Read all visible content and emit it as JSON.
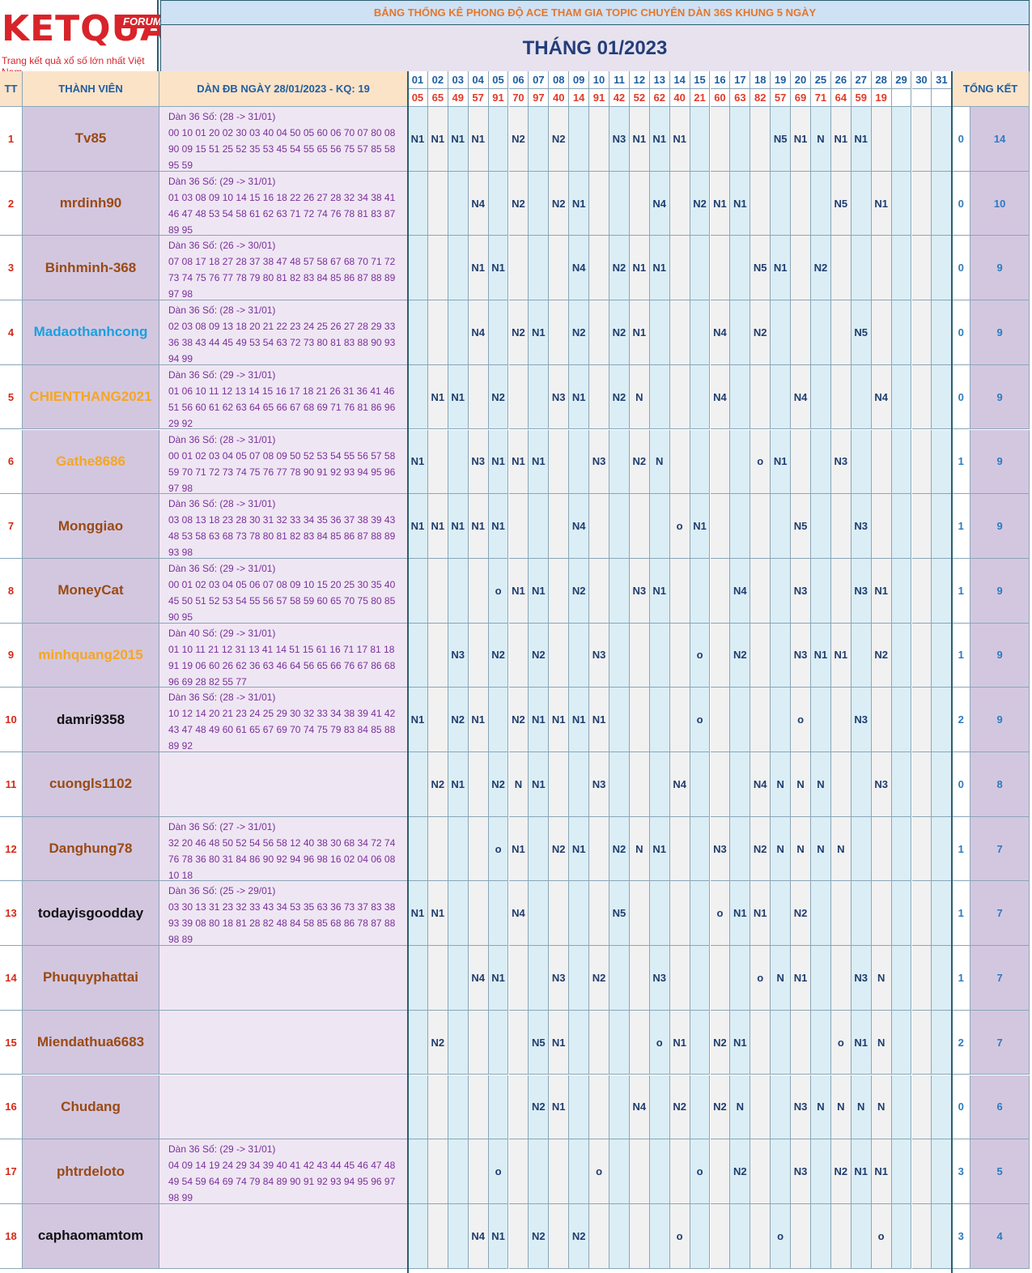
{
  "logo": {
    "brand": "KETQUA2",
    "badge": "FORUM",
    "tagline": "Trang kết quả xổ số lớn nhất Việt Nam"
  },
  "title": "BẢNG THỐNG KÊ PHONG ĐỘ ACE THAM GIA TOPIC CHUYÊN DÀN 36S KHUNG 5 NGÀY",
  "month": "THÁNG 01/2023",
  "headers": {
    "tt": "TT",
    "member": "THÀNH VIÊN",
    "dan": "DÀN ĐB NGÀY 28/01/2023 - KQ: 19",
    "summary": "TỔNG KẾT"
  },
  "days": [
    "01",
    "02",
    "03",
    "04",
    "05",
    "06",
    "07",
    "08",
    "09",
    "10",
    "11",
    "12",
    "13",
    "14",
    "15",
    "16",
    "17",
    "18",
    "19",
    "20",
    "25",
    "26",
    "27",
    "28",
    "29",
    "30",
    "31"
  ],
  "results": [
    "05",
    "65",
    "49",
    "57",
    "91",
    "70",
    "97",
    "40",
    "14",
    "91",
    "42",
    "52",
    "62",
    "40",
    "21",
    "60",
    "63",
    "82",
    "57",
    "69",
    "71",
    "64",
    "59",
    "19",
    "",
    "",
    ""
  ],
  "colors": {
    "brown": "#9a4a14",
    "cyan": "#1aa0e0",
    "orange": "#f5a623",
    "black": "#111111",
    "tt_red": "#d42a1a",
    "dan_purple": "#7a2f9a",
    "cell_navy": "#1f3d6e",
    "summary_blue": "#2c7bc0"
  },
  "rows": [
    {
      "tt": "1",
      "name": "Tv85",
      "color": "brown",
      "dan": [
        "Dàn 36 Số: (28 -> 31/01)",
        "00 10 01 20 02 30 03 40 04 50 05 60 06 70 07 80 08",
        "90 09 15 51 25 52 35 53 45 54 55 65 56 75 57 85 58",
        "95 59"
      ],
      "cells": [
        "N1",
        "N1",
        "N1",
        "N1",
        "",
        "N2",
        "",
        "N2",
        "",
        "",
        "N3",
        "N1",
        "N1",
        "N1",
        "",
        "",
        "",
        "",
        "N5",
        "N1",
        "N",
        "N1",
        "N1",
        "",
        "",
        "",
        ""
      ],
      "s1": "0",
      "s2": "14"
    },
    {
      "tt": "2",
      "name": "mrdinh90",
      "color": "brown",
      "dan": [
        "Dàn 36 Số: (29 -> 31/01)",
        "01 03 08 09 10 14 15 16 18 22 26 27 28 32 34 38 41",
        "46 47 48 53 54 58 61 62 63 71 72 74 76 78 81 83 87",
        "89 95"
      ],
      "cells": [
        "",
        "",
        "",
        "N4",
        "",
        "N2",
        "",
        "N2",
        "N1",
        "",
        "",
        "",
        "N4",
        "",
        "N2",
        "N1",
        "N1",
        "",
        "",
        "",
        "",
        "N5",
        "",
        "N1",
        "",
        "",
        ""
      ],
      "s1": "0",
      "s2": "10"
    },
    {
      "tt": "3",
      "name": "Binhminh-368",
      "color": "brown",
      "dan": [
        "Dàn 36 Số: (26 -> 30/01)",
        "07 08 17 18 27 28 37 38 47 48 57 58 67 68 70 71 72",
        "73 74 75 76 77 78 79 80 81 82 83 84 85 86 87 88 89",
        "97 98"
      ],
      "cells": [
        "",
        "",
        "",
        "N1",
        "N1",
        "",
        "",
        "",
        "N4",
        "",
        "N2",
        "N1",
        "N1",
        "",
        "",
        "",
        "",
        "N5",
        "N1",
        "",
        "N2",
        "",
        "",
        "",
        "",
        "",
        ""
      ],
      "s1": "0",
      "s2": "9"
    },
    {
      "tt": "4",
      "name": "Madaothanhcong",
      "color": "cyan",
      "dan": [
        "Dàn 36 Số: (28 -> 31/01)",
        "02 03 08 09 13 18 20 21 22 23 24 25 26 27 28 29 33",
        "36 38 43 44 45 49 53 54 63 72 73 80 81 83 88 90 93",
        "94 99"
      ],
      "cells": [
        "",
        "",
        "",
        "N4",
        "",
        "N2",
        "N1",
        "",
        "N2",
        "",
        "N2",
        "N1",
        "",
        "",
        "",
        "N4",
        "",
        "N2",
        "",
        "",
        "",
        "",
        "N5",
        "",
        "",
        "",
        ""
      ],
      "s1": "0",
      "s2": "9"
    },
    {
      "tt": "5",
      "name": "CHIENTHANG2021",
      "color": "orange",
      "dan": [
        "Dàn 36 Số: (29 -> 31/01)",
        "01 06 10 11 12 13 14 15 16 17 18 21 26 31 36 41 46",
        "51 56 60 61 62 63 64 65 66 67 68 69 71 76 81 86 96",
        "29 92"
      ],
      "cells": [
        "",
        "N1",
        "N1",
        "",
        "N2",
        "",
        "",
        "N3",
        "N1",
        "",
        "N2",
        "N",
        "",
        "",
        "",
        "N4",
        "",
        "",
        "",
        "N4",
        "",
        "",
        "",
        "N4",
        "",
        "",
        ""
      ],
      "s1": "0",
      "s2": "9"
    },
    {
      "tt": "6",
      "name": "Gathe8686",
      "color": "orange",
      "dan": [
        "Dàn 36 Số: (28 -> 31/01)",
        "00 01 02 03 04 05 07 08 09 50 52 53 54 55 56 57 58",
        "59 70 71 72 73 74 75 76 77 78 90 91 92 93 94 95 96",
        "97 98"
      ],
      "cells": [
        "N1",
        "",
        "",
        "N3",
        "N1",
        "N1",
        "N1",
        "",
        "",
        "N3",
        "",
        "N2",
        "N",
        "",
        "",
        "",
        "",
        "o",
        "N1",
        "",
        "",
        "N3",
        "",
        "",
        "",
        "",
        ""
      ],
      "s1": "1",
      "s2": "9"
    },
    {
      "tt": "7",
      "name": "Monggiao",
      "color": "brown",
      "dan": [
        "Dàn 36 Số: (28 -> 31/01)",
        "03 08 13 18 23 28 30 31 32 33 34 35 36 37 38 39 43",
        "48 53 58 63 68 73 78 80 81 82 83 84 85 86 87 88 89",
        "93 98"
      ],
      "cells": [
        "N1",
        "N1",
        "N1",
        "N1",
        "N1",
        "",
        "",
        "",
        "N4",
        "",
        "",
        "",
        "",
        "o",
        "N1",
        "",
        "",
        "",
        "",
        "N5",
        "",
        "",
        "N3",
        "",
        "",
        "",
        ""
      ],
      "s1": "1",
      "s2": "9"
    },
    {
      "tt": "8",
      "name": "MoneyCat",
      "color": "brown",
      "dan": [
        "Dàn 36 Số: (29 -> 31/01)",
        "00 01 02 03 04 05 06 07 08 09 10 15 20 25 30 35 40",
        "45 50 51 52 53 54 55 56 57 58 59 60 65 70 75 80 85",
        "90 95"
      ],
      "cells": [
        "",
        "",
        "",
        "",
        "o",
        "N1",
        "N1",
        "",
        "N2",
        "",
        "",
        "N3",
        "N1",
        "",
        "",
        "",
        "N4",
        "",
        "",
        "N3",
        "",
        "",
        "N3",
        "N1",
        "",
        "",
        ""
      ],
      "s1": "1",
      "s2": "9"
    },
    {
      "tt": "9",
      "name": "minhquang2015",
      "color": "orange",
      "dan": [
        "Dàn 40 Số: (29 -> 31/01)",
        "01 10 11 21 12 31 13 41 14 51 15 61 16 71 17 81 18",
        "91 19 06 60 26 62 36 63 46 64 56 65 66 76 67 86 68",
        "96 69 28 82 55 77"
      ],
      "cells": [
        "",
        "",
        "N3",
        "",
        "N2",
        "",
        "N2",
        "",
        "",
        "N3",
        "",
        "",
        "",
        "",
        "o",
        "",
        "N2",
        "",
        "",
        "N3",
        "N1",
        "N1",
        "",
        "N2",
        "",
        "",
        ""
      ],
      "s1": "1",
      "s2": "9"
    },
    {
      "tt": "10",
      "name": "damri9358",
      "color": "black",
      "dan": [
        "Dàn 36 Số: (28 -> 31/01)",
        "10 12 14 20 21 23 24 25 29 30 32 33 34 38 39 41 42",
        "43 47 48 49 60 61 65 67 69 70 74 75 79 83 84 85 88",
        "89 92"
      ],
      "cells": [
        "N1",
        "",
        "N2",
        "N1",
        "",
        "N2",
        "N1",
        "N1",
        "N1",
        "N1",
        "",
        "",
        "",
        "",
        "o",
        "",
        "",
        "",
        "",
        "o",
        "",
        "",
        "N3",
        "",
        "",
        "",
        ""
      ],
      "s1": "2",
      "s2": "9"
    },
    {
      "tt": "11",
      "name": "cuongls1102",
      "color": "brown",
      "dan": [],
      "cells": [
        "",
        "N2",
        "N1",
        "",
        "N2",
        "N",
        "N1",
        "",
        "",
        "N3",
        "",
        "",
        "",
        "N4",
        "",
        "",
        "",
        "N4",
        "N",
        "N",
        "N",
        "",
        "",
        "N3",
        "",
        "",
        ""
      ],
      "s1": "0",
      "s2": "8"
    },
    {
      "tt": "12",
      "name": "Danghung78",
      "color": "brown",
      "dan": [
        "Dàn 36 Số: (27 -> 31/01)",
        "32 20 46 48 50 52 54 56 58 12 40 38 30 68 34 72 74",
        "76 78 36 80 31 84 86 90 92 94 96 98 16 02 04 06 08",
        "10 18"
      ],
      "cells": [
        "",
        "",
        "",
        "",
        "o",
        "N1",
        "",
        "N2",
        "N1",
        "",
        "N2",
        "N",
        "N1",
        "",
        "",
        "N3",
        "",
        "N2",
        "N",
        "N",
        "N",
        "N",
        "",
        "",
        "",
        "",
        ""
      ],
      "s1": "1",
      "s2": "7"
    },
    {
      "tt": "13",
      "name": "todayisgoodday",
      "color": "black",
      "dan": [
        "Dàn 36 Số: (25 -> 29/01)",
        "03 30 13 31 23 32 33 43 34 53 35 63 36 73 37 83 38",
        "93 39 08 80 18 81 28 82 48 84 58 85 68 86 78 87 88",
        "98 89"
      ],
      "cells": [
        "N1",
        "N1",
        "",
        "",
        "",
        "N4",
        "",
        "",
        "",
        "",
        "N5",
        "",
        "",
        "",
        "",
        "o",
        "N1",
        "N1",
        "",
        "N2",
        "",
        "",
        "",
        "",
        "",
        "",
        ""
      ],
      "s1": "1",
      "s2": "7"
    },
    {
      "tt": "14",
      "name": "Phuquyphattai",
      "color": "brown",
      "dan": [],
      "cells": [
        "",
        "",
        "",
        "N4",
        "N1",
        "",
        "",
        "N3",
        "",
        "N2",
        "",
        "",
        "N3",
        "",
        "",
        "",
        "",
        "o",
        "N",
        "N1",
        "",
        "",
        "N3",
        "N",
        "",
        "",
        ""
      ],
      "s1": "1",
      "s2": "7"
    },
    {
      "tt": "15",
      "name": "Miendathua6683",
      "color": "brown",
      "dan": [],
      "cells": [
        "",
        "N2",
        "",
        "",
        "",
        "",
        "N5",
        "N1",
        "",
        "",
        "",
        "",
        "o",
        "N1",
        "",
        "N2",
        "N1",
        "",
        "",
        "",
        "",
        "o",
        "N1",
        "N",
        "",
        "",
        ""
      ],
      "s1": "2",
      "s2": "7"
    },
    {
      "tt": "16",
      "name": "Chudang",
      "color": "brown",
      "dan": [],
      "cells": [
        "",
        "",
        "",
        "",
        "",
        "",
        "N2",
        "N1",
        "",
        "",
        "",
        "N4",
        "",
        "N2",
        "",
        "N2",
        "N",
        "",
        "",
        "N3",
        "N",
        "N",
        "N",
        "N",
        "",
        "",
        ""
      ],
      "s1": "0",
      "s2": "6"
    },
    {
      "tt": "17",
      "name": "phtrdeloto",
      "color": "brown",
      "dan": [
        "Dàn 36 Số: (29 -> 31/01)",
        "04 09 14 19 24 29 34 39 40 41 42 43 44 45 46 47 48",
        "49 54 59 64 69 74 79 84 89 90 91 92 93 94 95 96 97",
        "98 99"
      ],
      "cells": [
        "",
        "",
        "",
        "",
        "o",
        "",
        "",
        "",
        "",
        "o",
        "",
        "",
        "",
        "",
        "o",
        "",
        "N2",
        "",
        "",
        "N3",
        "",
        "N2",
        "N1",
        "N1",
        "",
        "",
        ""
      ],
      "s1": "3",
      "s2": "5"
    },
    {
      "tt": "18",
      "name": "caphaomamtom",
      "color": "black",
      "dan": [],
      "cells": [
        "",
        "",
        "",
        "N4",
        "N1",
        "",
        "N2",
        "",
        "N2",
        "",
        "",
        "",
        "",
        "o",
        "",
        "",
        "",
        "",
        "o",
        "",
        "",
        "",
        "",
        "o",
        "",
        "",
        ""
      ],
      "s1": "3",
      "s2": "4"
    }
  ]
}
